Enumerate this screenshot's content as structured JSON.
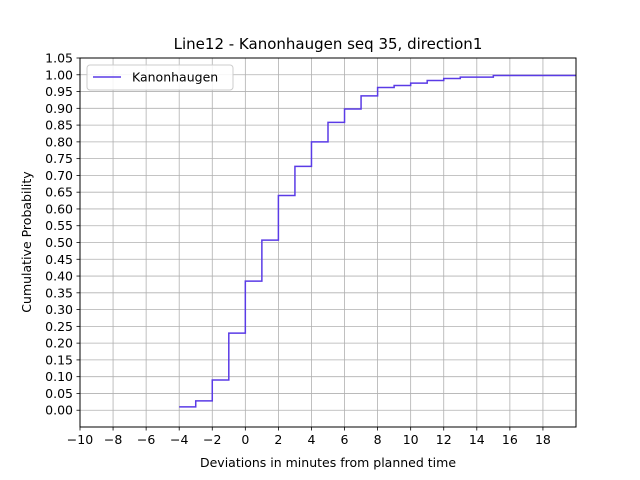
{
  "chart_data": {
    "type": "line",
    "step": "post",
    "title": "Line12 - Kanonhaugen seq 35, direction1",
    "xlabel": "Deviations in minutes from planned time",
    "ylabel": "Cumulative Probability",
    "xlim": [
      -10,
      20
    ],
    "ylim": [
      -0.05,
      1.05
    ],
    "grid": true,
    "legend_position": "top-left",
    "xticks": [
      -10,
      -8,
      -6,
      -4,
      -2,
      0,
      2,
      4,
      6,
      8,
      10,
      12,
      14,
      16,
      18
    ],
    "xtick_labels": [
      "−10",
      "−8",
      "−6",
      "−4",
      "−2",
      "0",
      "2",
      "4",
      "6",
      "8",
      "10",
      "12",
      "14",
      "16",
      "18"
    ],
    "yticks": [
      0.0,
      0.05,
      0.1,
      0.15,
      0.2,
      0.25,
      0.3,
      0.35,
      0.4,
      0.45,
      0.5,
      0.55,
      0.6,
      0.65,
      0.7,
      0.75,
      0.8,
      0.85,
      0.9,
      0.95,
      1.0,
      1.05
    ],
    "ytick_labels": [
      "0.00",
      "0.05",
      "0.10",
      "0.15",
      "0.20",
      "0.25",
      "0.30",
      "0.35",
      "0.40",
      "0.45",
      "0.50",
      "0.55",
      "0.60",
      "0.65",
      "0.70",
      "0.75",
      "0.80",
      "0.85",
      "0.90",
      "0.95",
      "1.00",
      "1.05"
    ],
    "series": [
      {
        "name": "Kanonhaugen",
        "color": "#5a3be6",
        "x": [
          -4,
          -3,
          -2,
          -1,
          0,
          1,
          2,
          3,
          4,
          5,
          6,
          7,
          8,
          9,
          10,
          11,
          12,
          13,
          15,
          20
        ],
        "y": [
          0.01,
          0.028,
          0.09,
          0.23,
          0.385,
          0.507,
          0.64,
          0.727,
          0.8,
          0.858,
          0.898,
          0.937,
          0.962,
          0.968,
          0.975,
          0.983,
          0.989,
          0.993,
          0.998,
          0.998
        ]
      }
    ]
  }
}
